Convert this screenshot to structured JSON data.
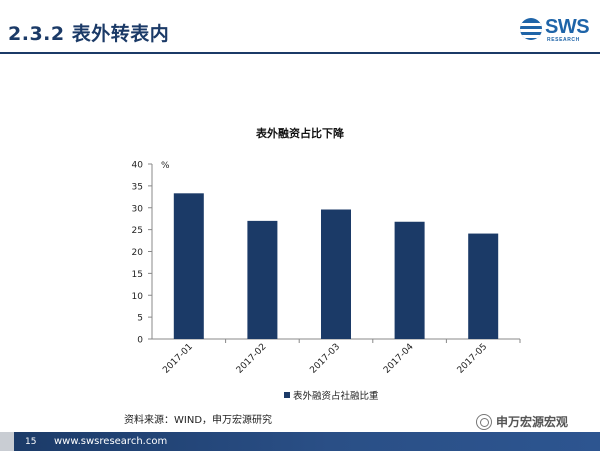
{
  "slide": {
    "title": "2.3.2 表外转表内"
  },
  "logo": {
    "text": "SWS",
    "sub": "RESEARCH"
  },
  "chart_data": {
    "type": "bar",
    "title": "表外融资占比下降",
    "ylabel": "%",
    "xlabel": "",
    "categories": [
      "2017-01",
      "2017-02",
      "2017-03",
      "2017-04",
      "2017-05"
    ],
    "series": [
      {
        "name": "表外融资占社融比重",
        "values": [
          33.3,
          27.0,
          29.6,
          26.8,
          24.1
        ],
        "color": "#1b3a67"
      }
    ],
    "ylim": [
      0,
      40
    ],
    "yticks": [
      0,
      5,
      10,
      15,
      20,
      25,
      30,
      35,
      40
    ],
    "grid": false,
    "legend": "bottom"
  },
  "source": "资料来源：WIND，申万宏源研究",
  "footer": {
    "page": "15",
    "url": "www.swsresearch.com"
  },
  "watermark": {
    "text": "申万宏源宏观"
  }
}
